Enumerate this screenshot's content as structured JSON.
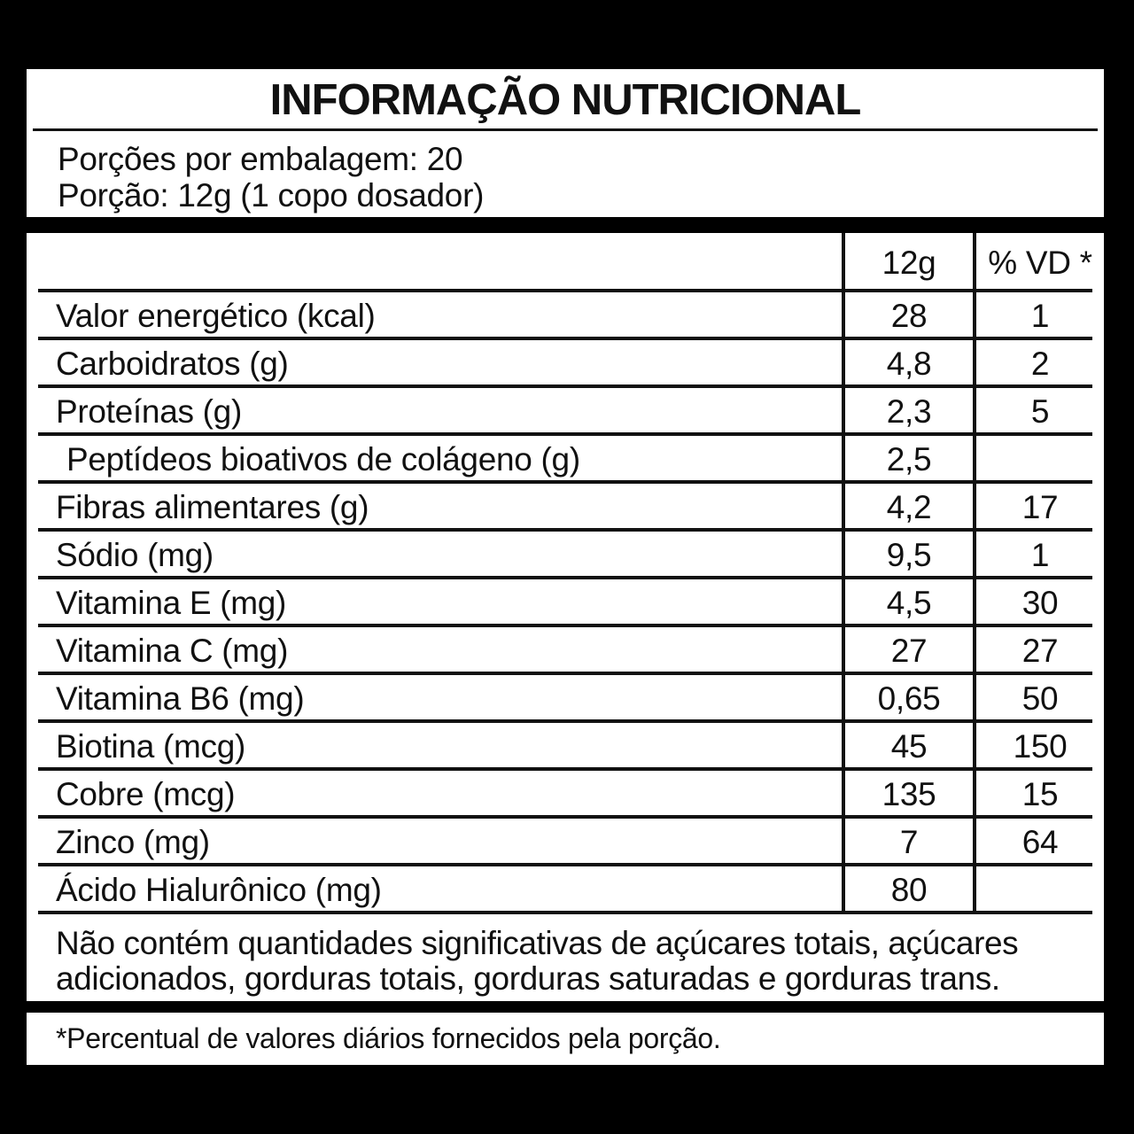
{
  "label": {
    "title": "INFORMAÇÃO NUTRICIONAL",
    "servings": {
      "per_package": "Porções por embalagem: 20",
      "portion": "Porção: 12g (1 copo dosador)"
    },
    "table": {
      "columns": {
        "amount": "12g",
        "daily_value": "% VD *"
      },
      "rows": [
        {
          "name": "Valor energético (kcal)",
          "amount": "28",
          "vd": "1"
        },
        {
          "name": "Carboidratos (g)",
          "amount": "4,8",
          "vd": "2"
        },
        {
          "name": "Proteínas (g)",
          "amount": "2,3",
          "vd": "5"
        },
        {
          "name": "Peptídeos bioativos de colágeno (g)",
          "amount": "2,5",
          "vd": ""
        },
        {
          "name": "Fibras alimentares (g)",
          "amount": "4,2",
          "vd": "17"
        },
        {
          "name": "Sódio (mg)",
          "amount": "9,5",
          "vd": "1"
        },
        {
          "name": "Vitamina E (mg)",
          "amount": "4,5",
          "vd": "30"
        },
        {
          "name": "Vitamina C (mg)",
          "amount": "27",
          "vd": "27"
        },
        {
          "name": "Vitamina B6 (mg)",
          "amount": "0,65",
          "vd": "50"
        },
        {
          "name": "Biotina (mcg)",
          "amount": "45",
          "vd": "150"
        },
        {
          "name": "Cobre (mcg)",
          "amount": "135",
          "vd": "15"
        },
        {
          "name": "Zinco (mg)",
          "amount": "7",
          "vd": "64"
        },
        {
          "name": "Ácido Hialurônico (mg)",
          "amount": "80",
          "vd": ""
        }
      ]
    },
    "no_significant_note": "Não contém quantidades significativas de açúcares totais, açúcares adicionados, gorduras totais, gorduras saturadas e gorduras trans.",
    "footnote": "*Percentual de valores diários fornecidos pela porção.",
    "colors": {
      "background": "#000000",
      "panel": "#ffffff",
      "text": "#111111"
    }
  }
}
